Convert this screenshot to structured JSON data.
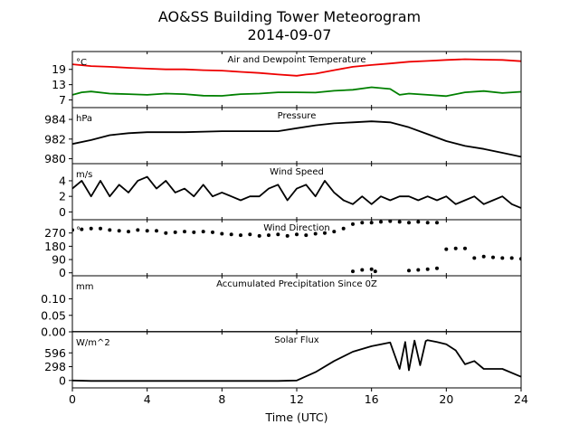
{
  "title": "AO&SS Building Tower Meteorogram",
  "subtitle": "2014-09-07",
  "chart_data": {
    "type": "line",
    "xlabel": "Time (UTC)",
    "xlim": [
      0,
      24
    ],
    "xticks": [
      0,
      4,
      8,
      12,
      16,
      20,
      24
    ],
    "panels": [
      {
        "title": "Air and Dewpoint Temperature",
        "unit": "°C",
        "ylim": [
          4,
          26
        ],
        "yticks": [
          7,
          13,
          19
        ],
        "series": [
          {
            "color": "#ee0000",
            "style": "line",
            "x": [
              0,
              1,
              2,
              3,
              4,
              5,
              6,
              7,
              8,
              9,
              10,
              11,
              12,
              12.5,
              13,
              14,
              15,
              16,
              17,
              18,
              19,
              20,
              21,
              22,
              23,
              24
            ],
            "y": [
              21,
              20.3,
              20,
              19.6,
              19.3,
              19,
              19,
              18.7,
              18.5,
              18,
              17.6,
              17,
              16.5,
              17,
              17.3,
              18.7,
              20,
              20.7,
              21.3,
              22,
              22.3,
              22.7,
              23,
              22.8,
              22.7,
              22.2
            ]
          },
          {
            "color": "#008000",
            "style": "line",
            "x": [
              0,
              0.5,
              1,
              2,
              3,
              4,
              5,
              6,
              7,
              8,
              9,
              10,
              11,
              12,
              13,
              14,
              15,
              16,
              17,
              17.5,
              18,
              19,
              20,
              21,
              22,
              23,
              24
            ],
            "y": [
              9,
              10,
              10.3,
              9.5,
              9.3,
              9,
              9.5,
              9.3,
              8.7,
              8.6,
              9.3,
              9.5,
              10,
              10,
              9.9,
              10.6,
              11,
              12,
              11.3,
              9,
              9.5,
              9,
              8.5,
              10,
              10.5,
              9.7,
              10.2
            ]
          }
        ]
      },
      {
        "title": "Pressure",
        "unit": "hPa",
        "ylim": [
          979.5,
          985.2
        ],
        "yticks": [
          980,
          982,
          984
        ],
        "series": [
          {
            "color": "#000000",
            "style": "line",
            "x": [
              0,
              1,
              2,
              3,
              4,
              6,
              8,
              10,
              11,
              12,
              13,
              14,
              15,
              16,
              17,
              18,
              19,
              20,
              21,
              22,
              23,
              24
            ],
            "y": [
              981.5,
              981.9,
              982.4,
              982.6,
              982.7,
              982.7,
              982.8,
              982.8,
              982.8,
              983.1,
              983.4,
              983.6,
              983.7,
              983.8,
              983.7,
              983.2,
              982.5,
              981.8,
              981.3,
              981,
              980.6,
              980.2
            ]
          }
        ]
      },
      {
        "title": "Wind Speed",
        "unit": "m/s",
        "ylim": [
          -1,
          6.2
        ],
        "yticks": [
          0,
          2,
          4
        ],
        "series": [
          {
            "color": "#000000",
            "style": "line",
            "x": [
              0,
              0.5,
              1,
              1.5,
              2,
              2.5,
              3,
              3.5,
              4,
              4.5,
              5,
              5.5,
              6,
              6.5,
              7,
              7.5,
              8,
              8.5,
              9,
              9.5,
              10,
              10.5,
              11,
              11.5,
              12,
              12.5,
              13,
              13.5,
              14,
              14.5,
              15,
              15.5,
              16,
              16.5,
              17,
              17.5,
              18,
              18.5,
              19,
              19.5,
              20,
              20.5,
              21,
              21.5,
              22,
              22.5,
              23,
              23.5,
              24
            ],
            "y": [
              3,
              4,
              2,
              4,
              2,
              3.5,
              2.5,
              4,
              4.5,
              3,
              4,
              2.5,
              3,
              2,
              3.5,
              2,
              2.5,
              2,
              1.5,
              2,
              2,
              3,
              3.5,
              1.5,
              3,
              3.5,
              2,
              4,
              2.5,
              1.5,
              1,
              2,
              1,
              2,
              1.5,
              2,
              2,
              1.5,
              2,
              1.5,
              2,
              1,
              1.5,
              2,
              1,
              1.5,
              2,
              1,
              0.5
            ]
          }
        ]
      },
      {
        "title": "Wind Direction",
        "unit": "°",
        "ylim": [
          -20,
          360
        ],
        "yticks": [
          0,
          90,
          180,
          270
        ],
        "series": [
          {
            "color": "#000000",
            "style": "dots",
            "x": [
              0,
              0.5,
              1,
              1.5,
              2,
              2.5,
              3,
              3.5,
              4,
              4.5,
              5,
              5.5,
              6,
              6.5,
              7,
              7.5,
              8,
              8.5,
              9,
              9.5,
              10,
              10.5,
              11,
              11.5,
              12,
              12.5,
              13,
              13.5,
              14,
              14.5,
              15,
              15.5,
              16,
              16.5,
              17,
              17.5,
              18,
              18.5,
              19,
              19.5,
              20,
              20.5,
              21,
              21.5,
              22,
              22.5,
              23,
              23.5,
              24
            ],
            "y": [
              290,
              295,
              300,
              300,
              290,
              285,
              280,
              290,
              285,
              285,
              270,
              275,
              280,
              275,
              280,
              275,
              265,
              260,
              255,
              260,
              250,
              255,
              260,
              250,
              260,
              255,
              265,
              270,
              280,
              300,
              330,
              340,
              340,
              345,
              350,
              345,
              340,
              345,
              340,
              340,
              160,
              165,
              165,
              100,
              110,
              105,
              100,
              100,
              95
            ]
          },
          {
            "color": "#000000",
            "style": "dots",
            "x": [
              15,
              15.5,
              16,
              16.2,
              18,
              18.5,
              19,
              19.5
            ],
            "y": [
              10,
              20,
              25,
              10,
              15,
              20,
              25,
              30
            ]
          }
        ]
      },
      {
        "title": "Accumulated Precipitation Since 0Z",
        "unit": "mm",
        "ylim": [
          0,
          0.17
        ],
        "yticks": [
          0.0,
          0.05,
          0.1
        ],
        "ytick_labels": [
          "0.00",
          "0.05",
          "0.10"
        ],
        "series": [
          {
            "color": "#000000",
            "style": "line",
            "x": [
              0,
              24
            ],
            "y": [
              0,
              0
            ]
          }
        ]
      },
      {
        "title": "Solar Flux",
        "unit": "W/m^2",
        "ylim": [
          -160,
          1050
        ],
        "yticks": [
          0,
          298,
          596
        ],
        "series": [
          {
            "color": "#000000",
            "style": "line",
            "x": [
              0,
              1,
              11,
              12,
              13,
              14,
              15,
              16,
              17,
              17.5,
              17.8,
              18,
              18.3,
              18.6,
              18.9,
              19,
              19.5,
              20,
              20.5,
              21,
              21.5,
              22,
              23,
              24
            ],
            "y": [
              0,
              -10,
              -10,
              0,
              180,
              420,
              620,
              740,
              820,
              250,
              830,
              220,
              860,
              330,
              850,
              870,
              830,
              780,
              650,
              350,
              420,
              250,
              250,
              80
            ]
          }
        ]
      }
    ]
  }
}
